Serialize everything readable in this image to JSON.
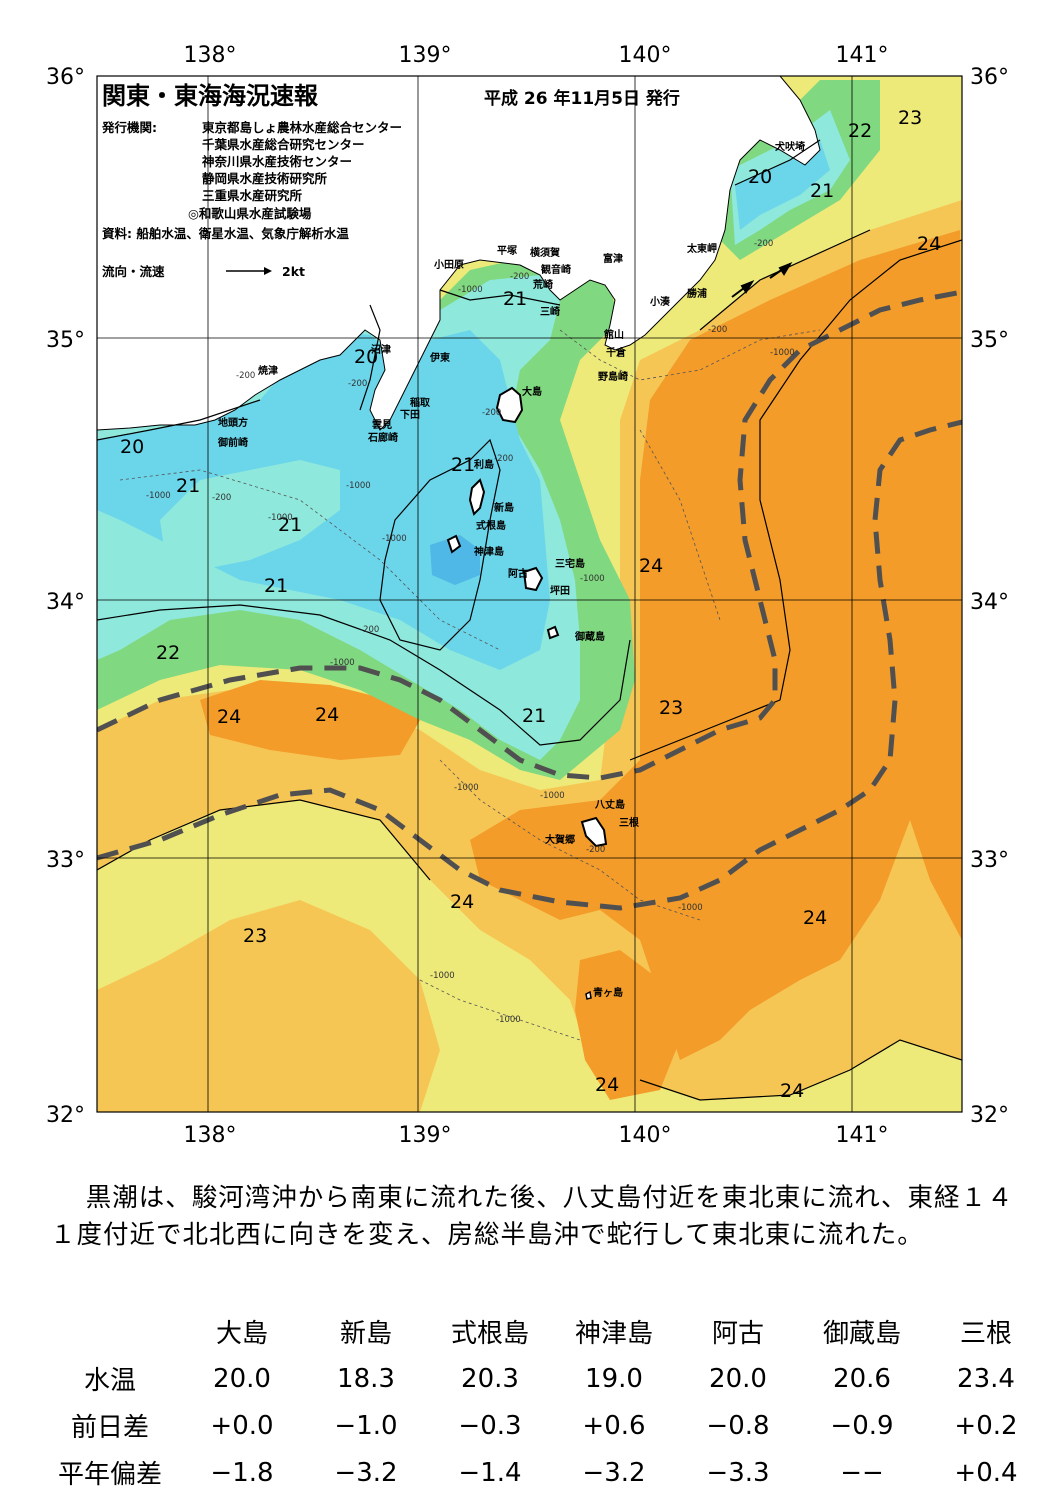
{
  "header": {
    "title": "関東・東海海況速報",
    "issue_date": "平成 26 年11月5日 発行",
    "issuer_label": "発行機関:",
    "issuers": [
      "東京都島しょ農林水産総合センター",
      "千葉県水産総合研究センター",
      "神奈川県水産技術センター",
      "静岡県水産技術研究所",
      "三重県水産研究所",
      "◎和歌山県水産試験場"
    ],
    "source": "資料: 船舶水温、衛星水温、気象庁解析水温",
    "legend_label": "流向・流速",
    "legend_speed": "2kt"
  },
  "axes": {
    "lon_labels": [
      "138°",
      "139°",
      "140°",
      "141°"
    ],
    "lat_labels": [
      "36°",
      "35°",
      "34°",
      "33°",
      "32°"
    ]
  },
  "colors": {
    "t19": "#4fb8e6",
    "t20": "#6bd5ea",
    "t21": "#8ee8dc",
    "t22": "#80d880",
    "t23": "#eeea7a",
    "t24": "#f6c655",
    "t25": "#f39c2a",
    "land": "#ffffff",
    "kuroshio": "#505050"
  },
  "places": [
    "犬吠埼",
    "太東岬",
    "勝浦",
    "小湊",
    "富津",
    "館山",
    "千倉",
    "野島崎",
    "横須賀",
    "観音崎",
    "荒崎",
    "三崎",
    "平塚",
    "小田原",
    "伊東",
    "稲取",
    "下田",
    "雲見",
    "石廊崎",
    "沼津",
    "焼津",
    "地頭方",
    "御前崎",
    "大島",
    "利島",
    "新島",
    "式根島",
    "神津島",
    "三宅島",
    "阿古",
    "坪田",
    "御蔵島",
    "八丈島",
    "三根",
    "大賀郷",
    "青ヶ島"
  ],
  "isotherm_labels": [
    "23",
    "22",
    "20",
    "21",
    "24",
    "21",
    "20",
    "20",
    "21",
    "21",
    "21",
    "21",
    "22",
    "24",
    "24",
    "24",
    "21",
    "23",
    "24",
    "23",
    "24",
    "24",
    "24",
    "23"
  ],
  "depth_labels": [
    "-200",
    "-1000",
    "-200",
    "-1000",
    "-200",
    "-1000",
    "-200",
    "-200",
    "-1000",
    "-1000",
    "-200",
    "-1000",
    "-1000",
    "-1000",
    "-200",
    "-1000",
    "-1000",
    "-1000",
    "-200",
    "-1000",
    "-1000",
    "-200",
    "-200"
  ],
  "summary": "黒潮は、駿河湾沖から南東に流れた後、八丈島付近を東北東に流れ、東経１４１度付近で北北西に向きを変え、房総半島沖で蛇行して東北東に流れた。",
  "table": {
    "columns": [
      "大島",
      "新島",
      "式根島",
      "神津島",
      "阿古",
      "御蔵島",
      "三根"
    ],
    "rows": [
      {
        "label": "水温",
        "values": [
          "20.0",
          "18.3",
          "20.3",
          "19.0",
          "20.0",
          "20.6",
          "23.4"
        ]
      },
      {
        "label": "前日差",
        "values": [
          "+0.0",
          "−1.0",
          "−0.3",
          "+0.6",
          "−0.8",
          "−0.9",
          "+0.2"
        ]
      },
      {
        "label": "平年偏差",
        "values": [
          "−1.8",
          "−3.2",
          "−1.4",
          "−3.2",
          "−3.3",
          "−−",
          "+0.4"
        ]
      }
    ]
  }
}
